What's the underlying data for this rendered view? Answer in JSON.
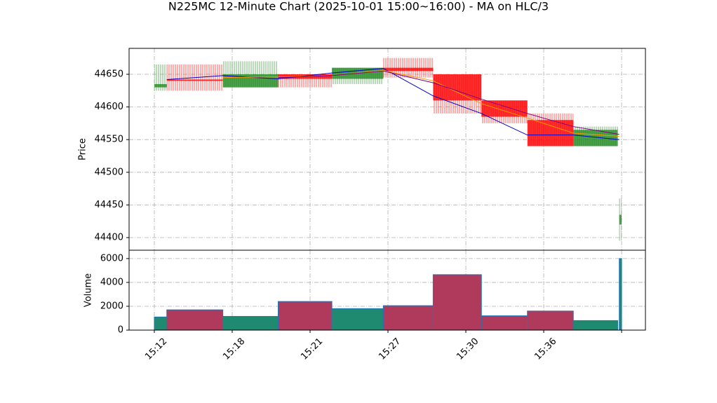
{
  "chart_data": {
    "type": "candlestick",
    "title": "N225MC 12-Minute Chart (2025-10-01 15:00~16:00) - MA on HLC/3",
    "ylabel": "Price",
    "x_start": [
      0,
      0.16,
      0.88,
      1.59,
      2.28,
      2.94,
      3.58,
      4.2,
      4.79,
      5.38,
      5.97
    ],
    "x_end": [
      0.16,
      0.88,
      1.59,
      2.28,
      2.94,
      3.58,
      4.2,
      4.79,
      5.38,
      5.95,
      6.0
    ],
    "open": [
      44630,
      44642,
      44630,
      44650,
      44643,
      44660,
      44650,
      44610,
      44580,
      44540,
      44420
    ],
    "high": [
      44665,
      44665,
      44670,
      44650,
      44660,
      44675,
      44650,
      44610,
      44590,
      44570,
      44460
    ],
    "low": [
      44625,
      44625,
      44630,
      44630,
      44635,
      44645,
      44590,
      44575,
      44540,
      44540,
      44395
    ],
    "close": [
      44635,
      44640,
      44650,
      44643,
      44660,
      44655,
      44610,
      44585,
      44540,
      44565,
      44435
    ],
    "up_color": "#228b22",
    "down_color": "#ff0000",
    "ma_lines": [
      {
        "color": "#0000cc",
        "values": [
          null,
          44642,
          44648,
          44643,
          44652,
          44659,
          44617,
          44590,
          44557,
          44557,
          44550
        ]
      },
      {
        "color": "#ff9900",
        "values": [
          null,
          null,
          44645,
          44646,
          44648,
          44656,
          44640,
          44605,
          44583,
          44560,
          44555
        ]
      },
      {
        "color": "#800080",
        "values": [
          null,
          null,
          null,
          44645,
          44648,
          44655,
          44637,
          44612,
          44590,
          44570,
          44558
        ]
      }
    ],
    "xlim": [
      -0.324,
      6.306
    ],
    "xticks": [
      {
        "value": 0,
        "label": "15:12"
      },
      {
        "value": 1,
        "label": "15:18"
      },
      {
        "value": 2,
        "label": "15:21"
      },
      {
        "value": 3,
        "label": "15:27"
      },
      {
        "value": 4,
        "label": "15:30"
      },
      {
        "value": 5,
        "label": "15:36"
      },
      {
        "value": 6,
        "label": null
      }
    ],
    "ylim": [
      44380.7,
      44689.7
    ],
    "yticks": [
      44400,
      44450,
      44500,
      44550,
      44600,
      44650
    ],
    "grid": true,
    "volume": {
      "ylabel": "Volume",
      "values": [
        1100,
        1700,
        1150,
        2400,
        1800,
        2050,
        4650,
        1200,
        1600,
        800,
        6000
      ],
      "up_color": "#1f8a70",
      "down_color": "#b03a5b",
      "edge_color": "#1f77b4",
      "ylim": [
        0,
        6700
      ],
      "yticks": [
        0,
        2000,
        4000,
        6000
      ]
    }
  }
}
